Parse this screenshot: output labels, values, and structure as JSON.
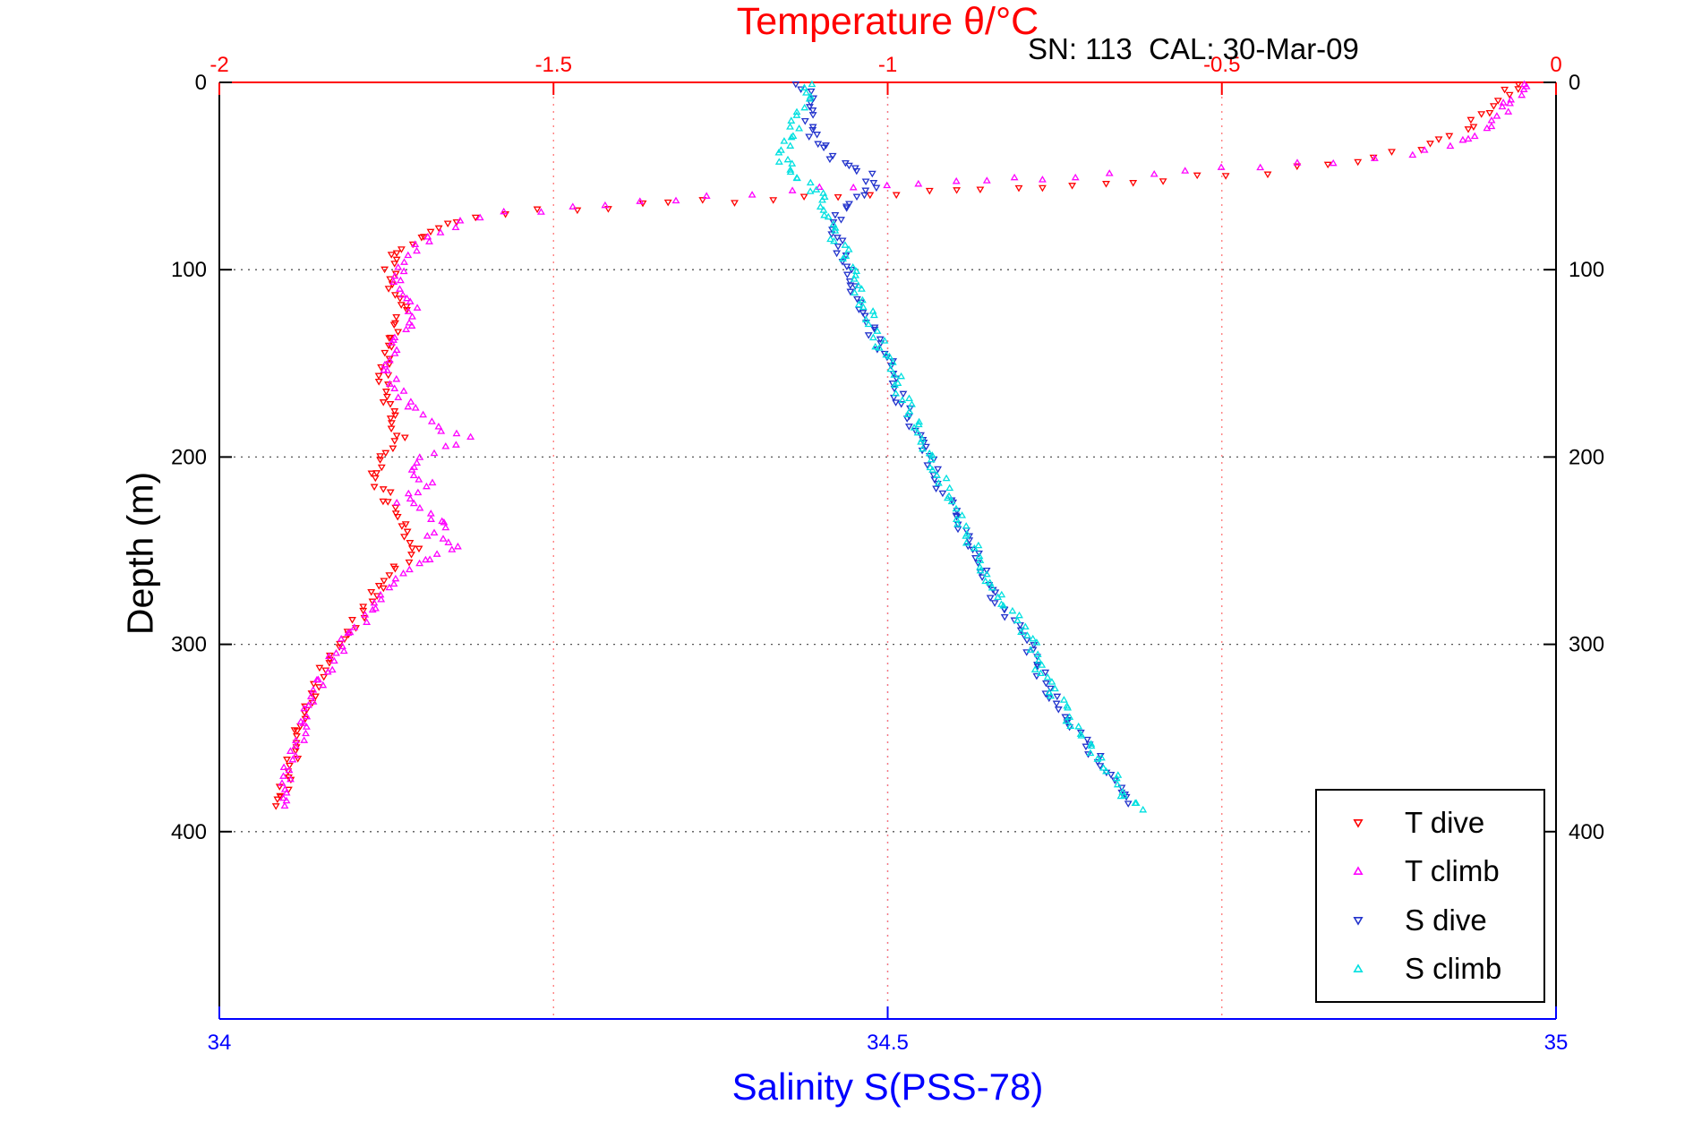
{
  "chart_data": {
    "type": "scatter",
    "title": "Temperature θ/°C",
    "subtitle": "SN: 113  CAL: 30-Mar-09",
    "ylabel": "Depth (m)",
    "xlabel_bottom": "Salinity S(PSS-78)",
    "y_inverted": true,
    "grid": true,
    "axes": {
      "temperature": {
        "min": -2,
        "max": 0,
        "ticks": [
          -2,
          -1.5,
          -1,
          -0.5,
          0
        ],
        "tick_labels": [
          "-2",
          "-1.5",
          "-1",
          "-0.5",
          "0"
        ],
        "color": "#ff0000",
        "position": "top"
      },
      "salinity": {
        "min": 34,
        "max": 35,
        "ticks": [
          34,
          34.5,
          35
        ],
        "tick_labels": [
          "34",
          "34.5",
          "35"
        ],
        "color": "#0000ff",
        "position": "bottom"
      },
      "depth": {
        "min": 0,
        "max": 500,
        "ticks": [
          0,
          100,
          200,
          300,
          400
        ],
        "tick_labels": [
          "0",
          "100",
          "200",
          "300",
          "400"
        ],
        "color": "#000000",
        "position": "left-right"
      }
    },
    "legend": {
      "position": "bottom-right",
      "entries": [
        {
          "label": "T dive",
          "color": "#ff0000",
          "marker": "tri-down"
        },
        {
          "label": "T climb",
          "color": "#ff00ff",
          "marker": "tri-up"
        },
        {
          "label": "S dive",
          "color": "#2233cc",
          "marker": "tri-down"
        },
        {
          "label": "S climb",
          "color": "#00e0e0",
          "marker": "tri-up"
        }
      ]
    },
    "series": [
      {
        "name": "T dive",
        "axis": "temperature",
        "color": "#ff0000",
        "marker": "tri-down",
        "depths": [
          0,
          5,
          10,
          15,
          20,
          25,
          30,
          35,
          40,
          44,
          48,
          52,
          55,
          58,
          61,
          64,
          67,
          70,
          74,
          78,
          82,
          86,
          90,
          95,
          100,
          110,
          120,
          130,
          140,
          150,
          160,
          170,
          180,
          190,
          200,
          210,
          220,
          230,
          240,
          250,
          260,
          270,
          280,
          290,
          300,
          310,
          320,
          330,
          340,
          350,
          360,
          370,
          380,
          386
        ],
        "values": [
          -0.06,
          -0.07,
          -0.08,
          -0.1,
          -0.12,
          -0.14,
          -0.17,
          -0.21,
          -0.27,
          -0.34,
          -0.44,
          -0.58,
          -0.72,
          -0.9,
          -1.08,
          -1.28,
          -1.46,
          -1.58,
          -1.65,
          -1.68,
          -1.7,
          -1.71,
          -1.73,
          -1.74,
          -1.745,
          -1.74,
          -1.72,
          -1.735,
          -1.745,
          -1.75,
          -1.755,
          -1.75,
          -1.74,
          -1.73,
          -1.76,
          -1.77,
          -1.75,
          -1.74,
          -1.72,
          -1.71,
          -1.74,
          -1.76,
          -1.78,
          -1.8,
          -1.82,
          -1.84,
          -1.85,
          -1.86,
          -1.875,
          -1.885,
          -1.89,
          -1.9,
          -1.905,
          -1.91
        ]
      },
      {
        "name": "T climb",
        "axis": "temperature",
        "color": "#ff00ff",
        "marker": "tri-up",
        "depths": [
          0,
          4,
          8,
          12,
          16,
          20,
          25,
          30,
          34,
          38,
          42,
          46,
          50,
          54,
          58,
          62,
          66,
          70,
          75,
          80,
          85,
          90,
          95,
          100,
          110,
          120,
          130,
          140,
          150,
          160,
          170,
          180,
          185,
          190,
          195,
          200,
          207,
          213,
          218,
          224,
          230,
          236,
          242,
          248,
          254,
          260,
          270,
          280,
          290,
          300,
          310,
          320,
          330,
          340,
          350,
          360,
          370,
          380,
          386
        ],
        "values": [
          -0.04,
          -0.05,
          -0.06,
          -0.07,
          -0.08,
          -0.09,
          -0.11,
          -0.13,
          -0.16,
          -0.22,
          -0.33,
          -0.5,
          -0.72,
          -0.95,
          -1.15,
          -1.32,
          -1.47,
          -1.58,
          -1.64,
          -1.67,
          -1.69,
          -1.71,
          -1.72,
          -1.73,
          -1.735,
          -1.71,
          -1.72,
          -1.74,
          -1.75,
          -1.74,
          -1.72,
          -1.69,
          -1.66,
          -1.63,
          -1.67,
          -1.7,
          -1.72,
          -1.68,
          -1.71,
          -1.73,
          -1.69,
          -1.66,
          -1.69,
          -1.64,
          -1.68,
          -1.72,
          -1.75,
          -1.77,
          -1.79,
          -1.815,
          -1.835,
          -1.85,
          -1.86,
          -1.87,
          -1.88,
          -1.89,
          -1.9,
          -1.905,
          -1.91
        ]
      },
      {
        "name": "S dive",
        "axis": "salinity",
        "color": "#2233cc",
        "marker": "tri-down",
        "depths": [
          0,
          5,
          10,
          15,
          20,
          25,
          30,
          34,
          38,
          42,
          46,
          50,
          54,
          58,
          62,
          66,
          70,
          75,
          80,
          85,
          90,
          95,
          100,
          110,
          120,
          130,
          140,
          150,
          160,
          170,
          180,
          190,
          200,
          210,
          220,
          230,
          240,
          250,
          260,
          270,
          280,
          290,
          300,
          310,
          320,
          330,
          340,
          350,
          360,
          370,
          378,
          385
        ],
        "values": [
          34.435,
          34.44,
          34.44,
          34.44,
          34.44,
          34.443,
          34.445,
          34.45,
          34.455,
          34.465,
          34.475,
          34.485,
          34.49,
          34.485,
          34.475,
          34.468,
          34.463,
          34.46,
          34.46,
          34.462,
          34.465,
          34.468,
          34.47,
          34.475,
          34.48,
          34.487,
          34.492,
          34.5,
          34.505,
          34.51,
          34.517,
          34.523,
          34.53,
          34.536,
          34.542,
          34.55,
          34.556,
          34.562,
          34.57,
          34.576,
          34.586,
          34.596,
          34.605,
          34.61,
          34.617,
          34.625,
          34.632,
          34.645,
          34.655,
          34.665,
          34.674,
          34.68
        ]
      },
      {
        "name": "S climb",
        "axis": "salinity",
        "color": "#00e0e0",
        "marker": "tri-up",
        "depths": [
          0,
          5,
          10,
          15,
          20,
          25,
          30,
          34,
          38,
          42,
          46,
          50,
          54,
          58,
          62,
          66,
          70,
          75,
          80,
          85,
          90,
          95,
          100,
          110,
          120,
          130,
          140,
          150,
          160,
          170,
          180,
          190,
          200,
          210,
          220,
          230,
          240,
          250,
          260,
          270,
          280,
          290,
          300,
          310,
          320,
          330,
          340,
          350,
          360,
          370,
          378,
          384,
          388
        ],
        "values": [
          34.44,
          34.44,
          34.438,
          34.435,
          34.432,
          34.43,
          34.428,
          34.425,
          34.42,
          34.422,
          34.427,
          34.433,
          34.44,
          34.446,
          34.45,
          34.452,
          34.455,
          34.457,
          34.46,
          34.463,
          34.467,
          34.47,
          34.473,
          34.478,
          34.483,
          34.49,
          34.495,
          34.503,
          34.508,
          34.513,
          34.52,
          34.526,
          34.533,
          34.539,
          34.545,
          34.553,
          34.559,
          34.565,
          34.573,
          34.579,
          34.589,
          34.599,
          34.608,
          34.613,
          34.62,
          34.628,
          34.635,
          34.648,
          34.658,
          34.668,
          34.676,
          34.683,
          34.688
        ]
      }
    ]
  }
}
